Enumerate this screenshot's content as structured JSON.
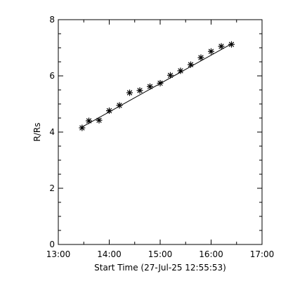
{
  "chart_data": {
    "type": "scatter",
    "title": "",
    "xlabel": "Start Time (27-Jul-25 12:55:53)",
    "ylabel": "R/Rs",
    "xlim": [
      "13:00",
      "17:00"
    ],
    "ylim": [
      0,
      8
    ],
    "x_ticks": [
      "13:00",
      "14:00",
      "15:00",
      "16:00",
      "17:00"
    ],
    "y_ticks": [
      "0",
      "2",
      "4",
      "6",
      "8"
    ],
    "grid": false,
    "marker": "asterisk",
    "series": [
      {
        "points": [
          {
            "x": "13:28",
            "y": 4.15
          },
          {
            "x": "13:36",
            "y": 4.4
          },
          {
            "x": "13:48",
            "y": 4.42
          },
          {
            "x": "14:00",
            "y": 4.76
          },
          {
            "x": "14:12",
            "y": 4.95
          },
          {
            "x": "14:24",
            "y": 5.4
          },
          {
            "x": "14:36",
            "y": 5.48
          },
          {
            "x": "14:48",
            "y": 5.62
          },
          {
            "x": "15:00",
            "y": 5.74
          },
          {
            "x": "15:12",
            "y": 6.02
          },
          {
            "x": "15:24",
            "y": 6.18
          },
          {
            "x": "15:36",
            "y": 6.4
          },
          {
            "x": "15:48",
            "y": 6.65
          },
          {
            "x": "16:00",
            "y": 6.87
          },
          {
            "x": "16:12",
            "y": 7.05
          },
          {
            "x": "16:24",
            "y": 7.12
          }
        ]
      }
    ],
    "fit_line": {
      "start": {
        "x": "13:28",
        "y": 4.18
      },
      "end": {
        "x": "16:24",
        "y": 7.14
      }
    },
    "colors": {
      "background": "#ffffff",
      "axes": "#000000",
      "markers": "#000000"
    }
  }
}
